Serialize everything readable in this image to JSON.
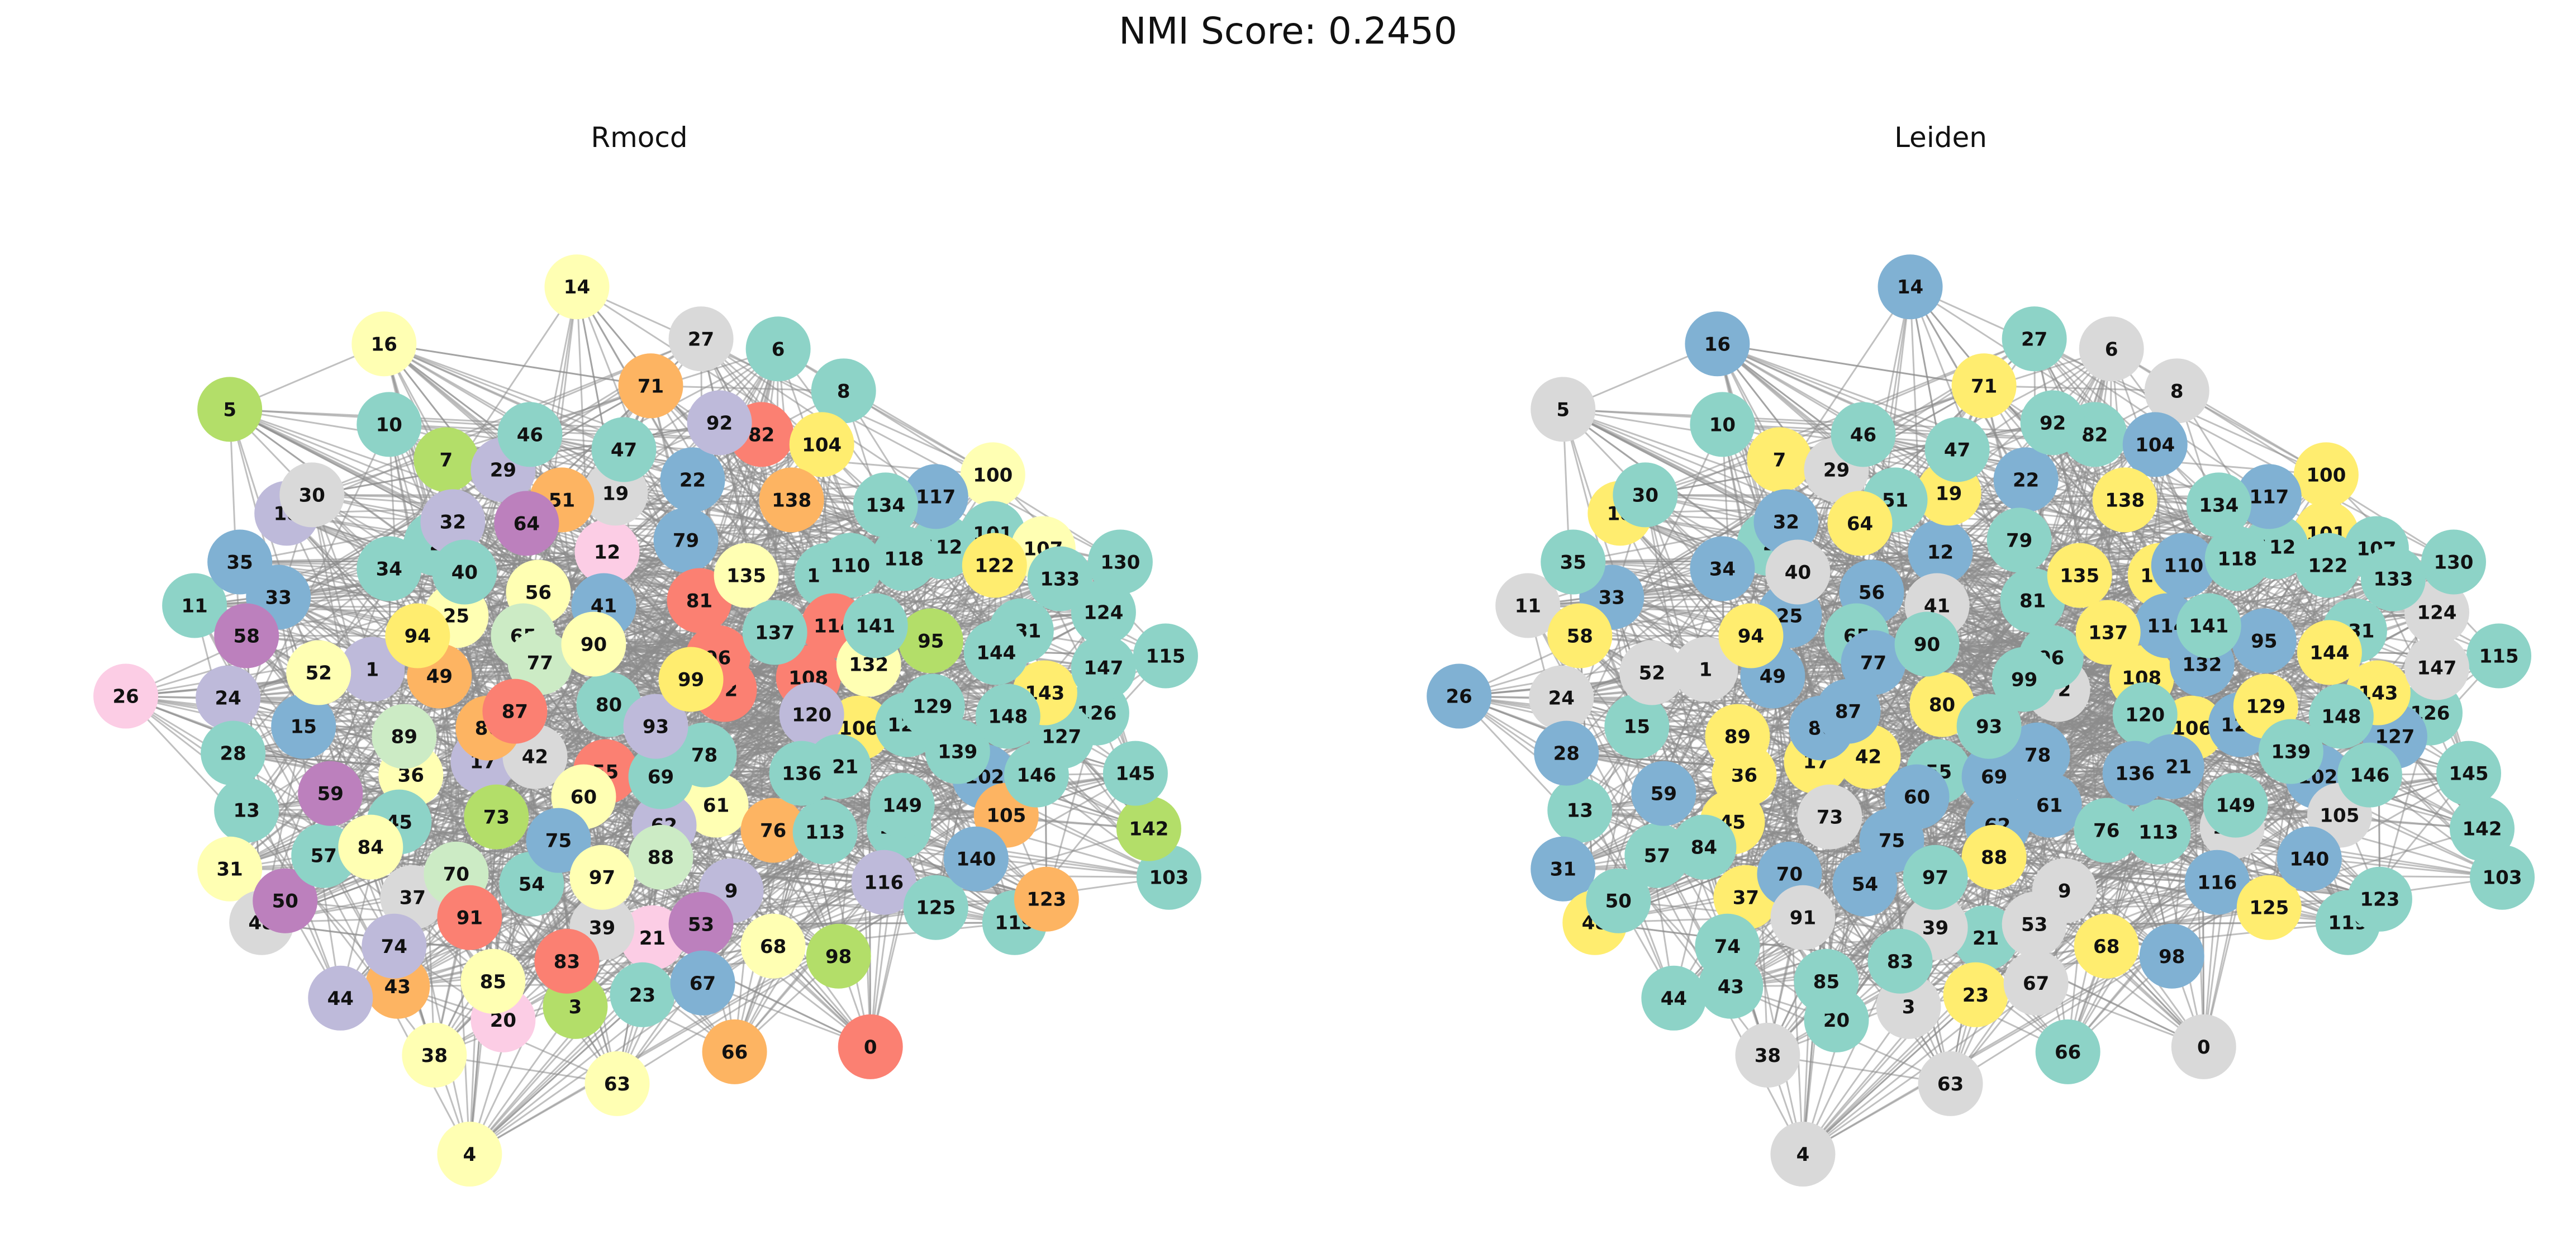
{
  "figure": {
    "title": "NMI Score: 0.2450",
    "panels": [
      {
        "title": "Rmocd"
      },
      {
        "title": "Leiden"
      }
    ]
  },
  "colors": {
    "mint": "#8dd3c7",
    "lightyellow": "#ffffb3",
    "lavender": "#bebada",
    "salmon": "#fb8072",
    "blue": "#80b1d3",
    "orange": "#fdb462",
    "green": "#b3de69",
    "pink": "#fccde5",
    "grey": "#d9d9d9",
    "purple": "#bc80bd",
    "paleGreen": "#ccebc5",
    "yellow": "#ffed6f"
  },
  "chart_data": {
    "type": "network",
    "nodes": [
      0,
      1,
      2,
      3,
      4,
      5,
      6,
      7,
      8,
      9,
      10,
      11,
      12,
      13,
      14,
      15,
      16,
      17,
      18,
      19,
      20,
      21,
      22,
      23,
      24,
      25,
      26,
      27,
      28,
      29,
      30,
      31,
      32,
      33,
      34,
      35,
      36,
      37,
      38,
      39,
      40,
      41,
      42,
      43,
      44,
      45,
      46,
      47,
      48,
      49,
      50,
      51,
      52,
      53,
      54,
      55,
      56,
      57,
      58,
      59,
      60,
      61,
      62,
      63,
      64,
      65,
      66,
      67,
      68,
      69,
      70,
      71,
      72,
      73,
      74,
      75,
      76,
      77,
      78,
      79,
      80,
      81,
      82,
      83,
      84,
      85,
      86,
      87,
      88,
      89,
      90,
      91,
      92,
      93,
      94,
      95,
      96,
      97,
      98,
      99,
      100,
      101,
      102,
      103,
      104,
      105,
      106,
      107,
      108,
      109,
      110,
      111,
      112,
      113,
      114,
      115,
      116,
      117,
      118,
      119,
      120,
      121,
      122,
      123,
      124,
      125,
      126,
      127,
      128,
      129,
      130,
      131,
      132,
      133,
      134,
      135,
      136,
      137,
      138,
      139,
      140,
      141,
      142,
      143,
      144,
      145,
      146,
      147,
      148,
      149
    ],
    "rmocd_groups": {
      "mint": [
        2,
        6,
        8,
        10,
        11,
        13,
        23,
        28,
        34,
        40,
        45,
        46,
        47,
        54,
        57,
        69,
        78,
        80,
        101,
        103,
        109,
        110,
        111,
        112,
        113,
        115,
        118,
        119,
        121,
        124,
        125,
        126,
        127,
        128,
        129,
        130,
        131,
        133,
        134,
        136,
        137,
        139,
        141,
        144,
        145,
        146,
        147,
        148,
        149
      ],
      "lightyellow": [
        4,
        14,
        16,
        25,
        31,
        36,
        38,
        52,
        56,
        60,
        61,
        63,
        68,
        84,
        85,
        90,
        97,
        100,
        107,
        132,
        135
      ],
      "lavender": [
        1,
        9,
        17,
        18,
        24,
        29,
        32,
        44,
        62,
        74,
        92,
        93,
        116,
        120
      ],
      "salmon": [
        0,
        55,
        72,
        81,
        82,
        83,
        87,
        91,
        96,
        108,
        114
      ],
      "blue": [
        15,
        22,
        33,
        35,
        41,
        67,
        75,
        79,
        102,
        117,
        140
      ],
      "orange": [
        43,
        49,
        51,
        66,
        71,
        76,
        86,
        105,
        123,
        138
      ],
      "green": [
        3,
        5,
        7,
        73,
        95,
        98,
        142
      ],
      "pink": [
        12,
        20,
        21,
        26
      ],
      "grey": [
        27,
        37,
        39,
        42,
        48
      ],
      "purple": [
        50,
        53,
        58,
        59,
        64
      ],
      "paleGreen": [
        65,
        70,
        77,
        88,
        89
      ],
      "yellow": [
        94,
        99,
        104,
        106,
        122,
        143
      ]
    },
    "leiden_groups": {
      "mint": [
        2,
        10,
        13,
        15,
        20,
        21,
        27,
        30,
        35,
        43,
        44,
        46,
        47,
        50,
        51,
        55,
        57,
        65,
        66,
        69,
        74,
        76,
        79,
        81,
        82,
        83,
        84,
        85,
        90,
        92,
        93,
        96,
        97,
        99,
        103,
        107,
        111,
        112,
        113,
        115,
        118,
        119,
        120,
        122,
        123,
        125,
        126,
        130,
        131,
        133,
        134,
        139,
        141,
        142,
        145,
        146,
        148,
        149
      ],
      "blue": [
        12,
        14,
        16,
        17,
        22,
        25,
        26,
        28,
        31,
        32,
        33,
        34,
        49,
        54,
        56,
        59,
        60,
        61,
        62,
        67,
        69,
        70,
        75,
        77,
        78,
        86,
        87,
        95,
        98,
        102,
        104,
        110,
        114,
        116,
        117,
        121,
        127,
        128,
        132,
        136,
        140,
        124
      ],
      "yellow": [
        7,
        17,
        18,
        19,
        23,
        36,
        37,
        42,
        45,
        48,
        58,
        64,
        68,
        71,
        80,
        88,
        89,
        94,
        100,
        101,
        106,
        108,
        109,
        125,
        129,
        135,
        137,
        138,
        143,
        144
      ],
      "grey": [
        0,
        1,
        3,
        4,
        5,
        6,
        8,
        9,
        11,
        24,
        29,
        38,
        39,
        40,
        41,
        52,
        53,
        63,
        67,
        72,
        73,
        91,
        105,
        111,
        124,
        147
      ]
    }
  }
}
